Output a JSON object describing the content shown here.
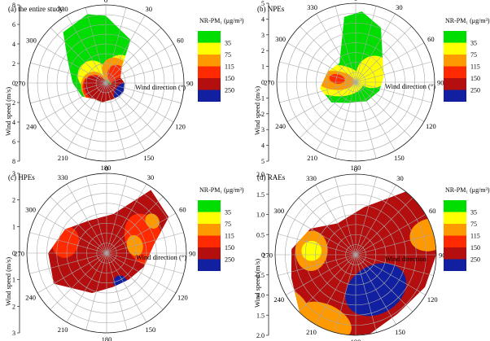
{
  "chart_data": [
    {
      "type": "polar-contour",
      "title": "(a) the entire study",
      "ylabel": "Wind speed (m/s)",
      "xlabel": "Wind direction (°)",
      "ylim": [
        0,
        8
      ],
      "radial_ticks": [
        "2",
        "4",
        "6",
        "8"
      ],
      "angle_ticks": [
        "0",
        "30",
        "60",
        "90",
        "120",
        "150",
        "180",
        "210",
        "240",
        "270",
        "300",
        "330"
      ],
      "legend_title": "NR-PM₁ (μg/m³)",
      "legend_levels": [
        "35",
        "75",
        "115",
        "150",
        "250"
      ],
      "hull": [
        [
          0,
          6.9
        ],
        [
          30,
          5.1
        ],
        [
          45,
          2.3
        ],
        [
          70,
          1.6
        ],
        [
          90,
          1.9
        ],
        [
          115,
          2.0
        ],
        [
          135,
          1.9
        ],
        [
          160,
          1.8
        ],
        [
          190,
          2.0
        ],
        [
          215,
          2.0
        ],
        [
          240,
          2.8
        ],
        [
          270,
          3.4
        ],
        [
          300,
          4.5
        ],
        [
          320,
          6.8
        ],
        [
          345,
          7.3
        ]
      ],
      "blobs": [
        {
          "level": 1,
          "theta": 50,
          "r": 2.0,
          "rx": 3.2,
          "ry": 3.2
        },
        {
          "level": 1,
          "theta": 300,
          "r": 1.6,
          "rx": 3.0,
          "ry": 3.0
        },
        {
          "level": 1,
          "theta": 210,
          "r": 1.4,
          "rx": 3.0,
          "ry": 3.0
        },
        {
          "level": 2,
          "theta": 250,
          "r": 1.2,
          "rx": 3.2,
          "ry": 2.8
        },
        {
          "level": 2,
          "theta": 40,
          "r": 1.6,
          "rx": 3.0,
          "ry": 2.6
        },
        {
          "level": 3,
          "theta": 240,
          "r": 1.2,
          "rx": 3.0,
          "ry": 2.6
        },
        {
          "level": 3,
          "theta": 60,
          "r": 1.4,
          "rx": 2.4,
          "ry": 2.0
        },
        {
          "level": 4,
          "theta": 220,
          "r": 1.0,
          "rx": 3.6,
          "ry": 2.4
        },
        {
          "level": 4,
          "theta": 120,
          "r": 1.4,
          "rx": 2.6,
          "ry": 1.8
        },
        {
          "level": 5,
          "theta": 120,
          "r": 2.0,
          "rx": 2.2,
          "ry": 1.6
        }
      ]
    },
    {
      "type": "polar-contour",
      "title": "(b) NPEs",
      "ylabel": "Wind speed (m/s)",
      "xlabel": "Wind direction (°)",
      "ylim": [
        0,
        5
      ],
      "radial_ticks": [
        "1",
        "2",
        "3",
        "4",
        "5"
      ],
      "angle_ticks": [
        "0",
        "30",
        "60",
        "90",
        "120",
        "150",
        "180",
        "210",
        "240",
        "270",
        "300",
        "330"
      ],
      "legend_title": "NR-PM₁ (μg/m³)",
      "legend_levels": [
        "35",
        "75",
        "115",
        "150",
        "250"
      ],
      "hull": [
        [
          5,
          4.5
        ],
        [
          25,
          3.8
        ],
        [
          45,
          2.4
        ],
        [
          80,
          1.8
        ],
        [
          110,
          1.6
        ],
        [
          150,
          1.4
        ],
        [
          200,
          1.4
        ],
        [
          230,
          2.0
        ],
        [
          260,
          2.3
        ],
        [
          290,
          1.9
        ],
        [
          320,
          1.6
        ],
        [
          350,
          4.2
        ]
      ],
      "blobs": [
        {
          "level": 1,
          "theta": 275,
          "r": 1.3,
          "rx": 2.0,
          "ry": 3.6
        },
        {
          "level": 1,
          "theta": 60,
          "r": 1.3,
          "rx": 2.0,
          "ry": 2.2
        },
        {
          "level": 2,
          "theta": 275,
          "r": 1.3,
          "rx": 1.2,
          "ry": 2.4
        },
        {
          "level": 3,
          "theta": 280,
          "r": 1.2,
          "rx": 0.6,
          "ry": 1.0
        }
      ]
    },
    {
      "type": "polar-contour",
      "title": "(c) HPEs",
      "ylabel": "Wind speed (m/s)",
      "xlabel": "Wind direction (°)",
      "ylim": [
        0,
        3
      ],
      "radial_ticks": [
        "1",
        "2",
        "3"
      ],
      "angle_ticks": [
        "0",
        "30",
        "60",
        "90",
        "120",
        "150",
        "180",
        "210",
        "240",
        "270",
        "300",
        "330"
      ],
      "legend_title": "NR-PM₁ (μg/m³)",
      "legend_levels": [
        "35",
        "75",
        "115",
        "150",
        "250"
      ],
      "hull": [
        [
          35,
          2.9
        ],
        [
          60,
          2.7
        ],
        [
          80,
          1.8
        ],
        [
          110,
          1.5
        ],
        [
          140,
          1.3
        ],
        [
          170,
          1.3
        ],
        [
          200,
          1.6
        ],
        [
          240,
          2.3
        ],
        [
          270,
          2.2
        ],
        [
          300,
          1.8
        ],
        [
          330,
          1.4
        ],
        [
          10,
          1.5
        ]
      ],
      "blobs": [
        {
          "level": 3,
          "theta": 70,
          "r": 1.5,
          "rx": 2.0,
          "ry": 1.4
        },
        {
          "level": 3,
          "theta": 285,
          "r": 1.6,
          "rx": 1.2,
          "ry": 1.0
        },
        {
          "level": 5,
          "theta": 155,
          "r": 1.2,
          "rx": 0.5,
          "ry": 0.5
        },
        {
          "level": 2,
          "theta": 55,
          "r": 2.1,
          "rx": 0.6,
          "ry": 0.5
        },
        {
          "level": 2,
          "theta": 75,
          "r": 1.1,
          "rx": 0.8,
          "ry": 0.6
        }
      ]
    },
    {
      "type": "polar-contour",
      "title": "(d) RAEs",
      "ylabel": "Wind speed (m/s)",
      "xlabel": "Wind direction",
      "ylim": [
        0,
        2.0
      ],
      "radial_ticks": [
        "0.5",
        "1.0",
        "1.5",
        "2.0"
      ],
      "angle_ticks": [
        "0",
        "30",
        "60",
        "90",
        "120",
        "150",
        "180",
        "210",
        "240",
        "270",
        "300",
        "330"
      ],
      "legend_title": "NR-PM₁ (μg/m³)",
      "legend_levels": [
        "35",
        "75",
        "115",
        "150",
        "250"
      ],
      "hull": [
        [
          40,
          2.1
        ],
        [
          70,
          2.05
        ],
        [
          90,
          2.0
        ],
        [
          115,
          1.9
        ],
        [
          145,
          1.8
        ],
        [
          170,
          2.0
        ],
        [
          195,
          2.1
        ],
        [
          220,
          2.1
        ],
        [
          250,
          1.7
        ],
        [
          275,
          1.6
        ],
        [
          300,
          1.3
        ],
        [
          330,
          0.9
        ],
        [
          10,
          1.2
        ]
      ],
      "blobs": [
        {
          "level": 5,
          "theta": 150,
          "r": 1.0,
          "rx": 1.6,
          "ry": 1.2
        },
        {
          "level": 1,
          "theta": 75,
          "r": 1.9,
          "rx": 0.5,
          "ry": 0.8
        },
        {
          "level": 2,
          "theta": 75,
          "r": 1.9,
          "rx": 0.8,
          "ry": 1.0
        },
        {
          "level": 1,
          "theta": 205,
          "r": 1.9,
          "rx": 1.0,
          "ry": 0.5
        },
        {
          "level": 2,
          "theta": 205,
          "r": 1.8,
          "rx": 1.4,
          "ry": 0.8
        },
        {
          "level": 2,
          "theta": 275,
          "r": 1.1,
          "rx": 1.0,
          "ry": 0.8
        },
        {
          "level": 1,
          "theta": 275,
          "r": 1.1,
          "rx": 0.5,
          "ry": 0.5
        },
        {
          "level": 2,
          "theta": 230,
          "r": 2.0,
          "rx": 1.0,
          "ry": 0.6
        }
      ]
    }
  ],
  "colors": {
    "levels": [
      "#00dd00",
      "#ffff00",
      "#ff9900",
      "#ff2a00",
      "#b50e0e",
      "#1020a0"
    ],
    "grid": "#a8a8a8"
  }
}
